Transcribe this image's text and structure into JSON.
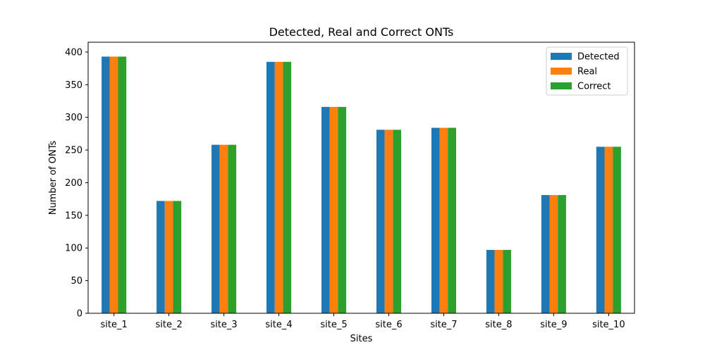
{
  "chart_data": {
    "type": "bar",
    "title": "Detected, Real and Correct ONTs",
    "xlabel": "Sites",
    "ylabel": "Number of ONTs",
    "ylim": [
      0,
      415
    ],
    "yticks": [
      0,
      50,
      100,
      150,
      200,
      250,
      300,
      350,
      400
    ],
    "categories": [
      "site_1",
      "site_2",
      "site_3",
      "site_4",
      "site_5",
      "site_6",
      "site_7",
      "site_8",
      "site_9",
      "site_10"
    ],
    "series": [
      {
        "name": "Detected",
        "color": "#1f77b4",
        "values": [
          393,
          172,
          258,
          385,
          316,
          281,
          284,
          97,
          181,
          255
        ]
      },
      {
        "name": "Real",
        "color": "#ff7f0e",
        "values": [
          393,
          172,
          258,
          385,
          316,
          281,
          284,
          97,
          181,
          255
        ]
      },
      {
        "name": "Correct",
        "color": "#2ca02c",
        "values": [
          393,
          172,
          258,
          385,
          316,
          281,
          284,
          97,
          181,
          255
        ]
      }
    ],
    "grid": false,
    "legend_position": "top-right"
  }
}
